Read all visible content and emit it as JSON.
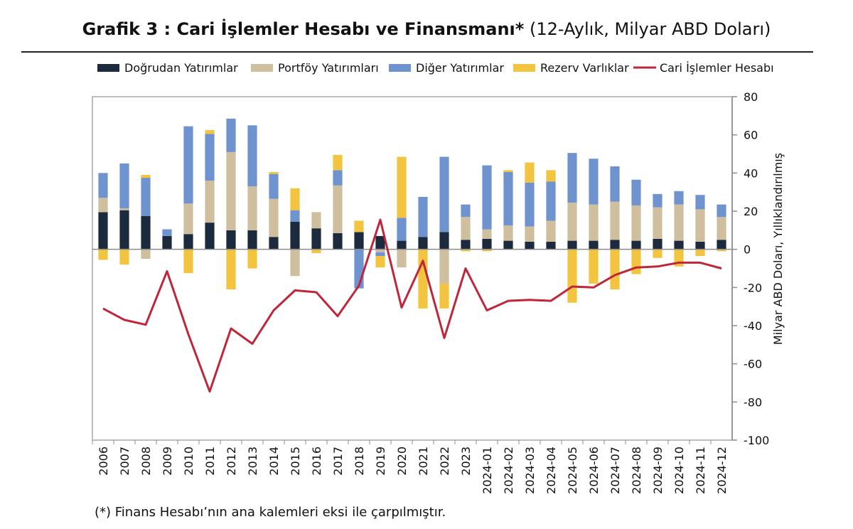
{
  "page": {
    "title_bold": "Grafik 3 : Cari İşlemler Hesabı ve Finansmanı*",
    "title_normal": "(12-Aylık, Milyar ABD Doları)",
    "footnote": "(*) Finans Hesabı’nın ana kalemleri eksi ile çarpılmıştır."
  },
  "chart_data": {
    "type": "bar",
    "stacked": true,
    "title": "Grafik 3 : Cari İşlemler Hesabı ve Finansmanı* (12-Aylık, Milyar ABD Doları)",
    "ylabel": "Milyar ABD Doları, Yıllıklandırılmış",
    "y_axis_position": "right",
    "ylim": [
      -100,
      80
    ],
    "yticks": [
      80,
      60,
      40,
      20,
      0,
      -20,
      -40,
      -60,
      -80,
      -100
    ],
    "legend_position": "top",
    "grid": false,
    "categories": [
      "2006",
      "2007",
      "2008",
      "2009",
      "2010",
      "2011",
      "2012",
      "2013",
      "2014",
      "2015",
      "2016",
      "2017",
      "2018",
      "2019",
      "2020",
      "2021",
      "2022",
      "2023",
      "2024-01",
      "2024-02",
      "2024-03",
      "2024-04",
      "2024-05",
      "2024-06",
      "2024-07",
      "2024-08",
      "2024-09",
      "2024-10",
      "2024-11",
      "2024-12"
    ],
    "series": [
      {
        "name": "Doğrudan Yatırımlar",
        "kind": "bar",
        "color": "#1c2a3d",
        "values": [
          19.5,
          20.5,
          17.5,
          7,
          8,
          14,
          10,
          10,
          6.5,
          14.5,
          11,
          8.5,
          9,
          7,
          4.5,
          6.5,
          9,
          5,
          5.5,
          4.5,
          4,
          4,
          4.5,
          4.5,
          5,
          4.5,
          5.5,
          4.5,
          4,
          5
        ]
      },
      {
        "name": "Portföy Yatırımları",
        "kind": "bar",
        "color": "#cfbf9e",
        "values": [
          7.5,
          1,
          -5,
          0,
          16,
          22,
          41,
          23,
          20,
          -14,
          8.5,
          25,
          0,
          -1.5,
          -9.5,
          0,
          -18,
          12,
          5,
          8,
          8,
          11,
          20,
          19,
          20,
          18.5,
          16.5,
          19,
          17,
          12
        ]
      },
      {
        "name": "Diğer Yatırımlar",
        "kind": "bar",
        "color": "#6e93cf",
        "values": [
          13,
          23.5,
          20,
          3.5,
          40.5,
          24.5,
          17.5,
          32,
          13,
          6,
          0,
          8,
          -20.5,
          -2,
          12,
          21,
          39.5,
          6.5,
          33.5,
          28,
          23,
          20.5,
          26,
          24,
          18.5,
          13.5,
          7,
          7,
          7.5,
          6.5
        ]
      },
      {
        "name": "Rezerv Varlıklar",
        "kind": "bar",
        "color": "#f2c440",
        "values": [
          -5.5,
          -8,
          1.5,
          0,
          -12.5,
          2,
          -21,
          -10,
          1,
          11.5,
          -2,
          8,
          6,
          -6,
          32,
          -31,
          -13,
          -1,
          -1,
          1,
          10.5,
          6,
          -28,
          -18,
          -21,
          -13,
          -4.5,
          -9,
          -3.5,
          -1
        ]
      },
      {
        "name": "Cari İşlemler Hesabı",
        "kind": "line",
        "color": "#c0263a",
        "values": [
          -31,
          -37,
          -39.5,
          -11.5,
          -44.5,
          -74.5,
          -41.5,
          -49.5,
          -32,
          -21.5,
          -22.5,
          -35,
          -19,
          15.5,
          -30.5,
          -6,
          -46.5,
          -10,
          -32,
          -27,
          -26.5,
          -27,
          -19.5,
          -20,
          -13.5,
          -9.5,
          -9,
          -7,
          -7,
          -10
        ]
      }
    ]
  }
}
